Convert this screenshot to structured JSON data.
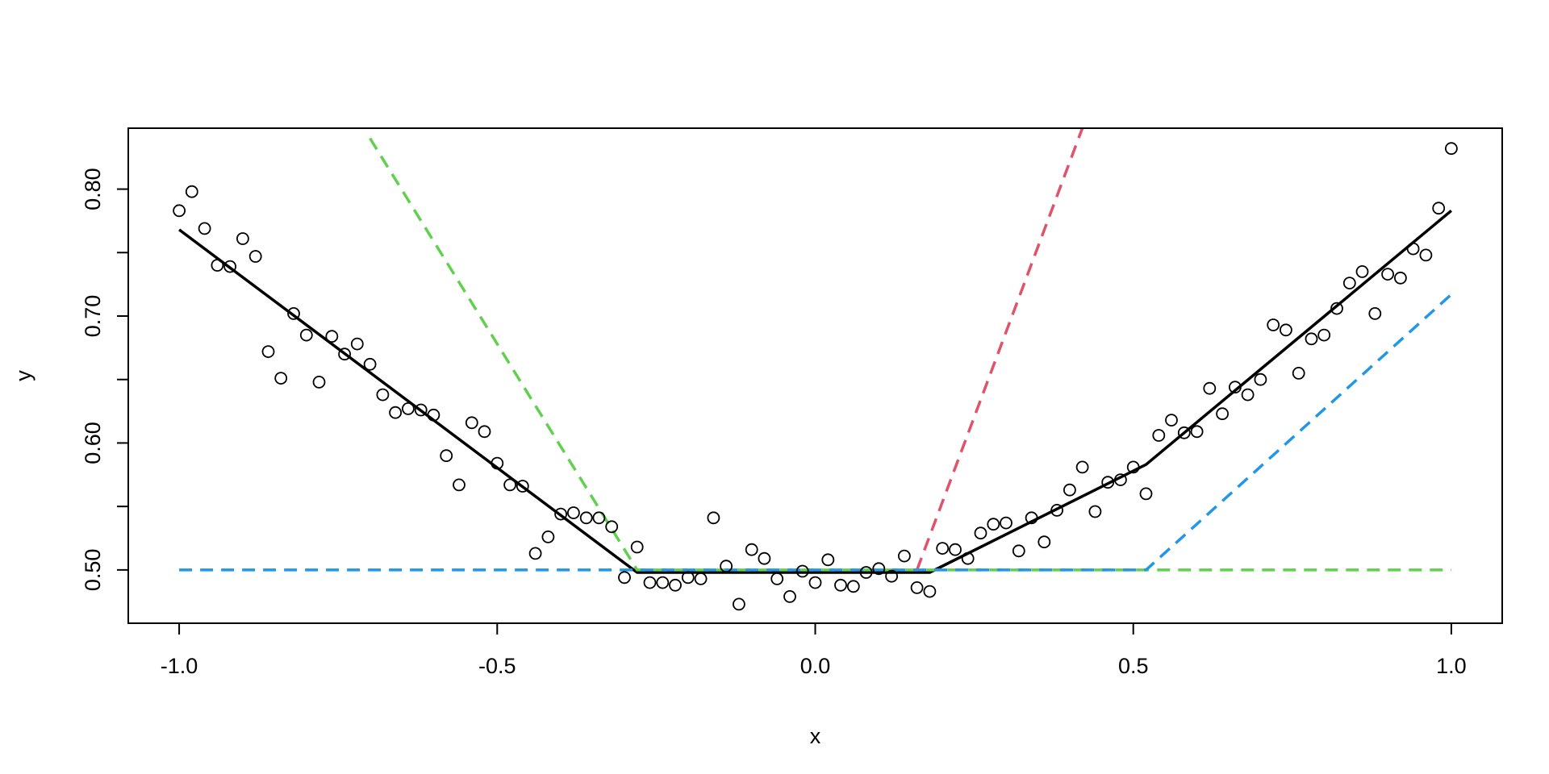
{
  "chart_data": {
    "type": "scatter",
    "title": "",
    "xlabel": "x",
    "ylabel": "y",
    "xlim": [
      -1.08,
      1.08
    ],
    "ylim": [
      0.458,
      0.848
    ],
    "xticks": [
      -1.0,
      -0.5,
      0.0,
      0.5,
      1.0
    ],
    "xtick_labels": [
      "-1.0",
      "-0.5",
      "0.0",
      "0.5",
      "1.0"
    ],
    "yticks": [
      0.5,
      0.55,
      0.6,
      0.65,
      0.7,
      0.75,
      0.8
    ],
    "ytick_labels": [
      "0.50",
      "",
      "0.60",
      "",
      "0.70",
      "",
      "0.80"
    ],
    "grid": false,
    "points": {
      "x": [
        -1.0,
        -0.98,
        -0.96,
        -0.94,
        -0.92,
        -0.9,
        -0.88,
        -0.86,
        -0.84,
        -0.82,
        -0.8,
        -0.78,
        -0.76,
        -0.74,
        -0.72,
        -0.7,
        -0.68,
        -0.66,
        -0.64,
        -0.62,
        -0.6,
        -0.58,
        -0.56,
        -0.54,
        -0.52,
        -0.5,
        -0.48,
        -0.46,
        -0.44,
        -0.42,
        -0.4,
        -0.38,
        -0.36,
        -0.34,
        -0.32,
        -0.3,
        -0.28,
        -0.26,
        -0.24,
        -0.22,
        -0.2,
        -0.18,
        -0.16,
        -0.14,
        -0.12,
        -0.1,
        -0.08,
        -0.06,
        -0.04,
        -0.02,
        0.0,
        0.02,
        0.04,
        0.06,
        0.08,
        0.1,
        0.12,
        0.14,
        0.16,
        0.18,
        0.2,
        0.22,
        0.24,
        0.26,
        0.28,
        0.3,
        0.32,
        0.34,
        0.36,
        0.38,
        0.4,
        0.42,
        0.44,
        0.46,
        0.48,
        0.5,
        0.52,
        0.54,
        0.56,
        0.58,
        0.6,
        0.62,
        0.64,
        0.66,
        0.68,
        0.7,
        0.72,
        0.74,
        0.76,
        0.78,
        0.8,
        0.82,
        0.84,
        0.86,
        0.88,
        0.9,
        0.92,
        0.94,
        0.96,
        0.98,
        1.0
      ],
      "y": [
        0.783,
        0.798,
        0.769,
        0.74,
        0.739,
        0.761,
        0.747,
        0.672,
        0.651,
        0.702,
        0.685,
        0.648,
        0.684,
        0.67,
        0.678,
        0.662,
        0.638,
        0.624,
        0.627,
        0.626,
        0.622,
        0.59,
        0.567,
        0.616,
        0.609,
        0.584,
        0.567,
        0.566,
        0.513,
        0.526,
        0.544,
        0.545,
        0.541,
        0.541,
        0.534,
        0.494,
        0.518,
        0.49,
        0.49,
        0.488,
        0.494,
        0.493,
        0.541,
        0.503,
        0.473,
        0.516,
        0.509,
        0.493,
        0.479,
        0.499,
        0.49,
        0.508,
        0.488,
        0.487,
        0.498,
        0.501,
        0.495,
        0.511,
        0.486,
        0.483,
        0.517,
        0.516,
        0.509,
        0.529,
        0.536,
        0.537,
        0.515,
        0.541,
        0.522,
        0.547,
        0.563,
        0.581,
        0.546,
        0.569,
        0.571,
        0.581,
        0.56,
        0.606,
        0.618,
        0.608,
        0.609,
        0.643,
        0.623,
        0.644,
        0.638,
        0.65,
        0.693,
        0.689,
        0.655,
        0.682,
        0.685,
        0.706,
        0.726,
        0.735,
        0.702,
        0.733,
        0.73,
        0.753,
        0.748,
        0.785,
        0.832
      ]
    },
    "series": [
      {
        "style": "solid",
        "color": "#000000",
        "x": [
          -1.0,
          -0.28,
          0.18,
          0.52,
          1.0
        ],
        "y": [
          0.768,
          0.498,
          0.498,
          0.583,
          0.783
        ]
      },
      {
        "style": "dashed",
        "color": "#61D04F",
        "x": [
          -0.7,
          -0.28,
          0.52,
          1.0
        ],
        "y": [
          0.84,
          0.5,
          0.5,
          0.5
        ]
      },
      {
        "style": "dashed",
        "color": "#DF536B",
        "x": [
          0.16,
          0.42
        ],
        "y": [
          0.5,
          0.848
        ]
      },
      {
        "style": "dashed",
        "color": "#2297E6",
        "x": [
          -1.0,
          0.52,
          1.0
        ],
        "y": [
          0.5,
          0.5,
          0.717
        ]
      }
    ]
  }
}
